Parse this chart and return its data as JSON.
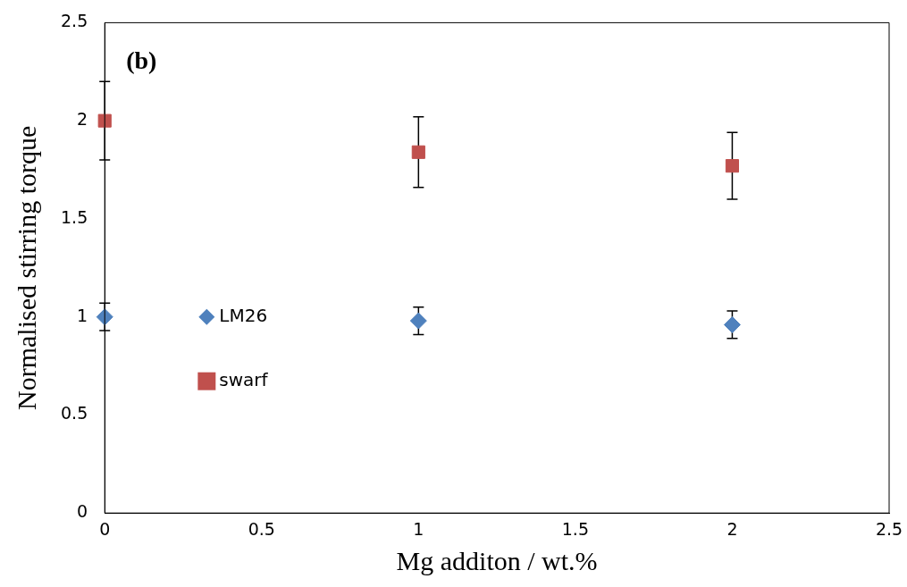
{
  "chart_data": {
    "type": "scatter",
    "xlabel": "Mg additon / wt.%",
    "ylabel": "Normalised stirring torque",
    "annotations": [
      "(b)"
    ],
    "x": [
      0,
      1,
      2
    ],
    "series": [
      {
        "name": "LM26",
        "color": "#4f81bd",
        "marker": "diamond",
        "values": [
          1.0,
          0.98,
          0.96
        ],
        "errors": [
          0.07,
          0.07,
          0.07
        ]
      },
      {
        "name": "swarf",
        "color": "#c0504d",
        "marker": "square",
        "values": [
          2.0,
          1.84,
          1.77
        ],
        "errors": [
          0.2,
          0.18,
          0.17
        ]
      }
    ],
    "xlim": [
      0,
      2.5
    ],
    "xticks": [
      0,
      0.5,
      1,
      1.5,
      2,
      2.5
    ],
    "ylim": [
      0,
      2.5
    ],
    "yticks": [
      0,
      0.5,
      1,
      1.5,
      2,
      2.5
    ],
    "grid": false,
    "legend": "left"
  }
}
